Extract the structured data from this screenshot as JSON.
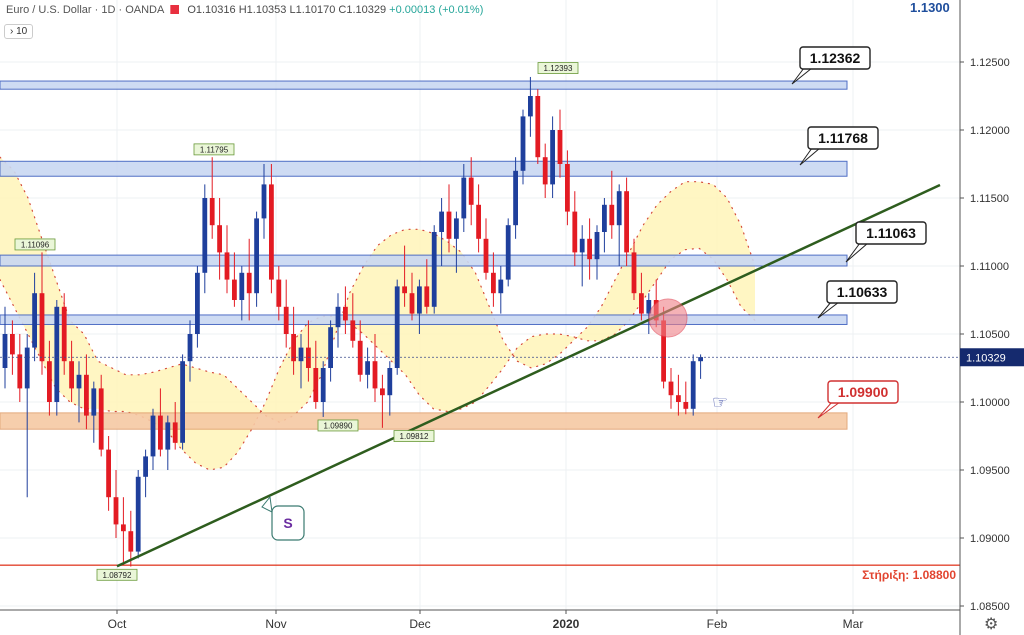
{
  "header": {
    "symbol": "Euro / U.S. Dollar · 1D · OANDA",
    "ohlc": "O1.10316  H1.10353  L1.10170  C1.10329",
    "change": "+0.00013 (+0.01%)",
    "interval": "› 10"
  },
  "top_price": "1.1300",
  "current_price": "1.10329",
  "support_label": "Στήριξη: 1.08800",
  "chart_data": {
    "type": "candlestick",
    "y_axis": {
      "ticks": [
        "1.08500",
        "1.09000",
        "1.09500",
        "1.10000",
        "1.10500",
        "1.11000",
        "1.11500",
        "1.12000",
        "1.12500"
      ],
      "range": [
        1.0845,
        1.13
      ]
    },
    "x_axis": {
      "ticks": [
        "Oct",
        "Nov",
        "Dec",
        "2020",
        "Feb",
        "Mar"
      ]
    },
    "colors": {
      "up": "#1f3f9c",
      "down": "#e31b23",
      "trend": "#2e5d1e",
      "zone": "#c9d8f2",
      "zone_border": "#3d5fbf",
      "support_zone": "#f6c9a4",
      "envelope": "#fff5b8"
    },
    "zones": [
      {
        "label": "1.12362",
        "low": 1.123,
        "high": 1.1236
      },
      {
        "label": "1.11768",
        "low": 1.1166,
        "high": 1.1177
      },
      {
        "label": "1.11063",
        "low": 1.11,
        "high": 1.1108
      },
      {
        "label": "1.10633",
        "low": 1.1057,
        "high": 1.1064
      },
      {
        "label": "1.09900",
        "low": 1.098,
        "high": 1.0992,
        "type": "support"
      }
    ],
    "support_line": 1.088,
    "point_labels": [
      {
        "text": "1.12393",
        "value": 1.12393
      },
      {
        "text": "1.11795",
        "value": 1.11795
      },
      {
        "text": "1.11096",
        "value": 1.11096
      },
      {
        "text": "1.09890",
        "value": 1.0989
      },
      {
        "text": "1.09812",
        "value": 1.09812
      },
      {
        "text": "1.08792",
        "value": 1.08792
      }
    ],
    "annotation": "S",
    "candles": [
      [
        1.1025,
        1.107,
        1.101,
        1.105
      ],
      [
        1.105,
        1.106,
        1.102,
        1.1035
      ],
      [
        1.1035,
        1.105,
        1.1,
        1.101
      ],
      [
        1.101,
        1.105,
        1.093,
        1.104
      ],
      [
        1.104,
        1.1095,
        1.103,
        1.108
      ],
      [
        1.108,
        1.111,
        1.102,
        1.103
      ],
      [
        1.103,
        1.1045,
        1.099,
        1.1
      ],
      [
        1.1,
        1.1075,
        1.099,
        1.107
      ],
      [
        1.107,
        1.108,
        1.102,
        1.103
      ],
      [
        1.103,
        1.1045,
        1.1,
        1.101
      ],
      [
        1.101,
        1.103,
        1.0985,
        1.102
      ],
      [
        1.102,
        1.1035,
        1.098,
        1.099
      ],
      [
        1.099,
        1.1015,
        1.097,
        1.101
      ],
      [
        1.101,
        1.102,
        1.096,
        1.0965
      ],
      [
        1.0965,
        1.0975,
        1.092,
        1.093
      ],
      [
        1.093,
        1.095,
        1.09,
        1.091
      ],
      [
        1.091,
        1.093,
        1.088,
        1.0905
      ],
      [
        1.0905,
        1.092,
        1.0879,
        1.089
      ],
      [
        1.089,
        1.095,
        1.0885,
        1.0945
      ],
      [
        1.0945,
        1.0965,
        1.093,
        1.096
      ],
      [
        1.096,
        1.0995,
        1.095,
        1.099
      ],
      [
        1.099,
        1.101,
        1.096,
        1.0965
      ],
      [
        1.0965,
        1.099,
        1.095,
        1.0985
      ],
      [
        1.0985,
        1.1,
        1.0965,
        1.097
      ],
      [
        1.097,
        1.1035,
        1.0965,
        1.103
      ],
      [
        1.103,
        1.106,
        1.1015,
        1.105
      ],
      [
        1.105,
        1.11,
        1.104,
        1.1095
      ],
      [
        1.1095,
        1.116,
        1.108,
        1.115
      ],
      [
        1.115,
        1.118,
        1.112,
        1.113
      ],
      [
        1.113,
        1.115,
        1.109,
        1.111
      ],
      [
        1.111,
        1.113,
        1.108,
        1.109
      ],
      [
        1.109,
        1.111,
        1.107,
        1.1075
      ],
      [
        1.1075,
        1.11,
        1.106,
        1.1095
      ],
      [
        1.1095,
        1.112,
        1.106,
        1.108
      ],
      [
        1.108,
        1.114,
        1.107,
        1.1135
      ],
      [
        1.1135,
        1.1175,
        1.112,
        1.116
      ],
      [
        1.116,
        1.1175,
        1.108,
        1.109
      ],
      [
        1.109,
        1.11,
        1.106,
        1.107
      ],
      [
        1.107,
        1.109,
        1.104,
        1.105
      ],
      [
        1.105,
        1.107,
        1.102,
        1.103
      ],
      [
        1.103,
        1.105,
        1.101,
        1.104
      ],
      [
        1.104,
        1.106,
        1.1015,
        1.1025
      ],
      [
        1.1025,
        1.1045,
        1.0995,
        1.1
      ],
      [
        1.1,
        1.103,
        1.0989,
        1.1025
      ],
      [
        1.1025,
        1.106,
        1.1015,
        1.1055
      ],
      [
        1.1055,
        1.108,
        1.104,
        1.107
      ],
      [
        1.107,
        1.1085,
        1.105,
        1.106
      ],
      [
        1.106,
        1.108,
        1.104,
        1.1045
      ],
      [
        1.1045,
        1.106,
        1.1015,
        1.102
      ],
      [
        1.102,
        1.104,
        1.101,
        1.103
      ],
      [
        1.103,
        1.105,
        1.1,
        1.101
      ],
      [
        1.101,
        1.102,
        1.0981,
        1.1005
      ],
      [
        1.1005,
        1.103,
        1.099,
        1.1025
      ],
      [
        1.1025,
        1.109,
        1.102,
        1.1085
      ],
      [
        1.1085,
        1.1115,
        1.107,
        1.108
      ],
      [
        1.108,
        1.1095,
        1.106,
        1.1065
      ],
      [
        1.1065,
        1.109,
        1.105,
        1.1085
      ],
      [
        1.1085,
        1.1105,
        1.1065,
        1.107
      ],
      [
        1.107,
        1.113,
        1.1065,
        1.1125
      ],
      [
        1.1125,
        1.115,
        1.11,
        1.114
      ],
      [
        1.114,
        1.116,
        1.111,
        1.112
      ],
      [
        1.112,
        1.114,
        1.1095,
        1.1135
      ],
      [
        1.1135,
        1.1175,
        1.1125,
        1.1165
      ],
      [
        1.1165,
        1.118,
        1.113,
        1.1145
      ],
      [
        1.1145,
        1.116,
        1.111,
        1.112
      ],
      [
        1.112,
        1.1135,
        1.109,
        1.1095
      ],
      [
        1.1095,
        1.111,
        1.107,
        1.108
      ],
      [
        1.108,
        1.11,
        1.1065,
        1.109
      ],
      [
        1.109,
        1.1135,
        1.1085,
        1.113
      ],
      [
        1.113,
        1.118,
        1.112,
        1.117
      ],
      [
        1.117,
        1.1215,
        1.116,
        1.121
      ],
      [
        1.121,
        1.1239,
        1.1195,
        1.1225
      ],
      [
        1.1225,
        1.123,
        1.1175,
        1.118
      ],
      [
        1.118,
        1.119,
        1.115,
        1.116
      ],
      [
        1.116,
        1.121,
        1.115,
        1.12
      ],
      [
        1.12,
        1.1215,
        1.1165,
        1.1175
      ],
      [
        1.1175,
        1.1185,
        1.113,
        1.114
      ],
      [
        1.114,
        1.1155,
        1.11,
        1.111
      ],
      [
        1.111,
        1.113,
        1.1085,
        1.112
      ],
      [
        1.112,
        1.1135,
        1.109,
        1.1105
      ],
      [
        1.1105,
        1.113,
        1.109,
        1.1125
      ],
      [
        1.1125,
        1.115,
        1.111,
        1.1145
      ],
      [
        1.1145,
        1.117,
        1.112,
        1.113
      ],
      [
        1.113,
        1.116,
        1.11,
        1.1155
      ],
      [
        1.1155,
        1.1165,
        1.11,
        1.111
      ],
      [
        1.111,
        1.112,
        1.1075,
        1.108
      ],
      [
        1.108,
        1.1095,
        1.106,
        1.1065
      ],
      [
        1.1065,
        1.108,
        1.105,
        1.1075
      ],
      [
        1.1075,
        1.109,
        1.1055,
        1.106
      ],
      [
        1.106,
        1.107,
        1.101,
        1.1015
      ],
      [
        1.1015,
        1.1025,
        1.0995,
        1.1005
      ],
      [
        1.1005,
        1.102,
        1.099,
        1.1
      ],
      [
        1.1,
        1.1015,
        1.0991,
        1.0995
      ],
      [
        1.0995,
        1.1035,
        1.099,
        1.103
      ],
      [
        1.103,
        1.1035,
        1.1017,
        1.1033
      ]
    ],
    "envelope_upper": [
      1.118,
      1.117,
      1.115,
      1.112,
      1.109,
      1.106,
      1.105,
      1.103,
      1.1025,
      1.102,
      1.102,
      1.1022,
      1.1025,
      1.1028,
      1.1025,
      1.1022,
      1.102,
      1.101,
      1.1,
      1.099,
      1.0985,
      1.099,
      1.1,
      1.102,
      1.105,
      1.108,
      1.11,
      1.1115,
      1.1123,
      1.1127,
      1.1127,
      1.1124,
      1.1118,
      1.111,
      1.1095,
      1.107,
      1.1045,
      1.103,
      1.1025,
      1.1028,
      1.1035,
      1.1045,
      1.1055,
      1.107,
      1.109,
      1.111,
      1.113,
      1.1145,
      1.1155,
      1.1162,
      1.1162,
      1.116,
      1.115,
      1.113,
      1.11
    ],
    "envelope_lower": [
      1.109,
      1.107,
      1.105,
      1.103,
      1.101,
      1.1,
      1.0995,
      1.0995,
      1.0993,
      1.0993,
      1.099,
      1.0985,
      1.0978,
      1.0965,
      1.0955,
      1.095,
      1.0952,
      1.0963,
      1.098,
      1.1,
      1.1025,
      1.1045,
      1.1058,
      1.1063,
      1.1063,
      1.1058,
      1.105,
      1.104,
      1.103,
      1.102,
      1.1005,
      1.0995,
      1.0993,
      1.0995,
      1.1,
      1.1012,
      1.1025,
      1.104,
      1.1048,
      1.105,
      1.105,
      1.1048,
      1.1045,
      1.1045,
      1.105,
      1.106,
      1.1075,
      1.109,
      1.1105,
      1.1112,
      1.1113,
      1.1105,
      1.109,
      1.107,
      1.106
    ]
  }
}
